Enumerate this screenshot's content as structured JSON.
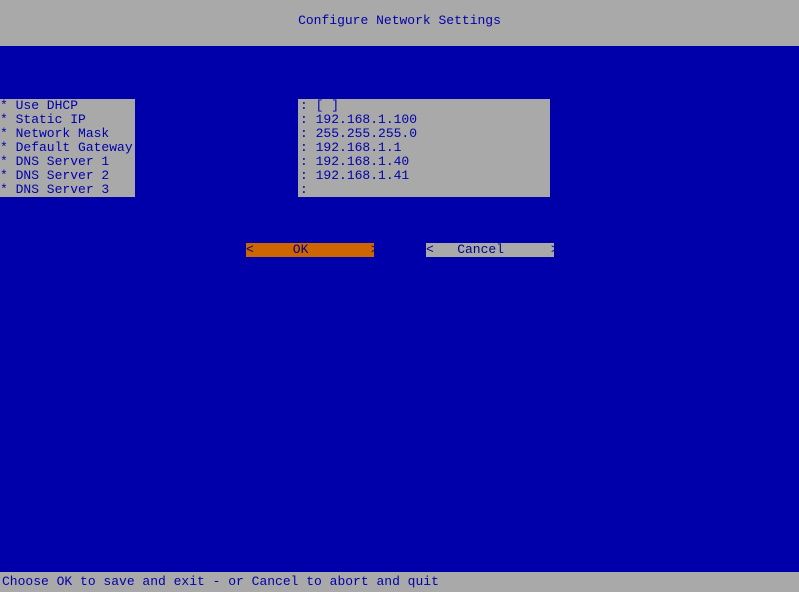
{
  "colors": {
    "background": "#0000aa",
    "panel": "#a9a9a9",
    "text_on_panel": "#0000aa",
    "ok_button_bg": "#cd6600",
    "cancel_button_bg": "#a9a9a9",
    "button_text": "#00008b"
  },
  "title": "Configure Network Settings",
  "fields": [
    {
      "label": "* Use DHCP",
      "value": "[ ]"
    },
    {
      "label": "* Static IP",
      "value": "192.168.1.100"
    },
    {
      "label": "* Network Mask",
      "value": "255.255.255.0"
    },
    {
      "label": "* Default Gateway",
      "value": "192.168.1.1"
    },
    {
      "label": "* DNS Server 1",
      "value": "192.168.1.40"
    },
    {
      "label": "* DNS Server 2",
      "value": "192.168.1.41"
    },
    {
      "label": "* DNS Server 3",
      "value": ""
    }
  ],
  "buttons": {
    "ok": "<     OK        >",
    "cancel": "<   Cancel      >"
  },
  "footer": "Choose OK to save and exit - or Cancel to abort and quit"
}
